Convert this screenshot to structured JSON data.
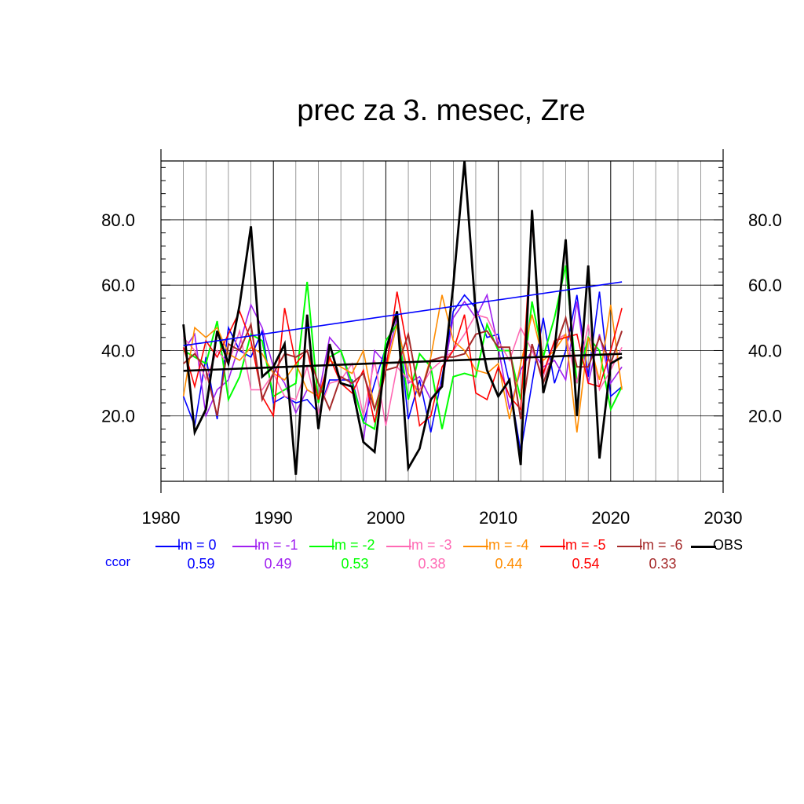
{
  "chart_data": {
    "type": "line",
    "title": "prec za 3. mesec, Zre",
    "xlim": [
      1980,
      2030
    ],
    "ylim": [
      0,
      98
    ],
    "x_ticks": [
      "1980",
      "1990",
      "2000",
      "2010",
      "2020",
      "2030"
    ],
    "y_ticks": [
      "20.0",
      "40.0",
      "60.0",
      "80.0"
    ],
    "x": [
      1982,
      1983,
      1984,
      1985,
      1986,
      1987,
      1988,
      1989,
      1990,
      1991,
      1992,
      1993,
      1994,
      1995,
      1996,
      1997,
      1998,
      1999,
      2000,
      2001,
      2002,
      2003,
      2004,
      2005,
      2006,
      2007,
      2008,
      2009,
      2010,
      2011,
      2012,
      2013,
      2014,
      2015,
      2016,
      2017,
      2018,
      2019,
      2020,
      2021
    ],
    "series": [
      {
        "name": "lm = 0",
        "color": "#0000ff",
        "width": 1.6,
        "values": [
          26,
          17,
          38,
          19,
          47,
          40,
          38,
          46,
          24,
          26,
          24,
          25,
          21,
          31,
          31,
          31,
          18,
          30,
          41,
          51,
          19,
          31,
          15,
          32,
          52,
          57,
          53,
          44,
          45,
          30,
          9,
          30,
          50,
          30,
          40,
          57,
          32,
          58,
          26,
          29
        ],
        "trend": [
          41.5,
          61
        ]
      },
      {
        "name": "lm = -1",
        "color": "#a020f0",
        "width": 1.6,
        "values": [
          40,
          45,
          20,
          28,
          31,
          42,
          54,
          47,
          35,
          30,
          21,
          28,
          26,
          44,
          40,
          28,
          12,
          40,
          36,
          50,
          30,
          32,
          25,
          30,
          50,
          55,
          50,
          57,
          41,
          22,
          34,
          40,
          35,
          37,
          31,
          55,
          30,
          45,
          30,
          35
        ]
      },
      {
        "name": "lm = -2",
        "color": "#00ff00",
        "width": 2.0,
        "values": [
          40,
          38,
          36,
          49,
          25,
          32,
          45,
          43,
          26,
          28,
          30,
          61,
          24,
          38,
          40,
          30,
          18,
          16,
          43,
          48,
          25,
          39,
          35,
          16,
          32,
          33,
          32,
          48,
          40,
          40,
          25,
          55,
          38,
          50,
          66,
          30,
          44,
          40,
          22,
          29
        ]
      },
      {
        "name": "lm = -3",
        "color": "#ff69b4",
        "width": 1.6,
        "values": [
          44,
          40,
          31,
          40,
          36,
          46,
          28,
          28,
          33,
          26,
          25,
          35,
          21,
          30,
          31,
          36,
          20,
          37,
          17,
          35,
          31,
          28,
          34,
          37,
          40,
          45,
          51,
          50,
          43,
          37,
          47,
          40,
          32,
          43,
          45,
          30,
          48,
          28,
          34,
          41
        ]
      },
      {
        "name": "lm = -4",
        "color": "#ff8c00",
        "width": 1.6,
        "values": [
          26,
          47,
          44,
          47,
          39,
          37,
          41,
          39,
          33,
          31,
          36,
          28,
          26,
          37,
          35,
          33,
          40,
          22,
          34,
          48,
          33,
          26,
          38,
          57,
          43,
          40,
          34,
          33,
          36,
          19,
          36,
          51,
          37,
          40,
          45,
          15,
          44,
          31,
          54,
          28
        ]
      },
      {
        "name": "lm = -5",
        "color": "#ff0000",
        "width": 1.6,
        "values": [
          41,
          29,
          43,
          38,
          45,
          52,
          43,
          26,
          20,
          53,
          36,
          40,
          25,
          38,
          30,
          27,
          34,
          18,
          34,
          58,
          39,
          17,
          20,
          35,
          40,
          51,
          27,
          25,
          35,
          26,
          22,
          80,
          33,
          43,
          44,
          45,
          30,
          29,
          40,
          53
        ]
      },
      {
        "name": "lm = -6",
        "color": "#a52a2a",
        "width": 2.0,
        "values": [
          36,
          39,
          34,
          20,
          42,
          40,
          48,
          25,
          33,
          39,
          38,
          40,
          30,
          22,
          32,
          30,
          33,
          22,
          34,
          35,
          45,
          26,
          37,
          38,
          38,
          39,
          45,
          46,
          41,
          41,
          19,
          42,
          30,
          40,
          50,
          35,
          35,
          44,
          36,
          46
        ]
      },
      {
        "name": "OBS",
        "color": "#000000",
        "width": 2.8,
        "values": [
          48,
          15,
          22,
          46,
          36,
          54,
          78,
          32,
          35,
          42,
          2,
          51,
          16,
          42,
          30,
          29,
          12,
          9,
          40,
          52,
          4,
          10,
          25,
          29,
          60,
          98,
          51,
          34,
          26,
          31,
          5,
          83,
          27,
          40,
          74,
          20,
          66,
          7,
          36,
          38
        ],
        "trend": [
          33.8,
          39
        ]
      }
    ],
    "legend": [
      {
        "label": "lm = 0",
        "value": "0.59",
        "color": "#0000ff"
      },
      {
        "label": "lm = -1",
        "value": "0.49",
        "color": "#a020f0"
      },
      {
        "label": "lm = -2",
        "value": "0.53",
        "color": "#00ff00"
      },
      {
        "label": "lm = -3",
        "value": "0.38",
        "color": "#ff69b4"
      },
      {
        "label": "lm = -4",
        "value": "0.44",
        "color": "#ff8c00"
      },
      {
        "label": "lm = -5",
        "value": "0.54",
        "color": "#ff0000"
      },
      {
        "label": "lm = -6",
        "value": "0.33",
        "color": "#a52a2a"
      },
      {
        "label": "OBS",
        "value": "",
        "color": "#000000"
      }
    ],
    "ccor_label": "ccor",
    "ccor_color": "#0000ff"
  }
}
